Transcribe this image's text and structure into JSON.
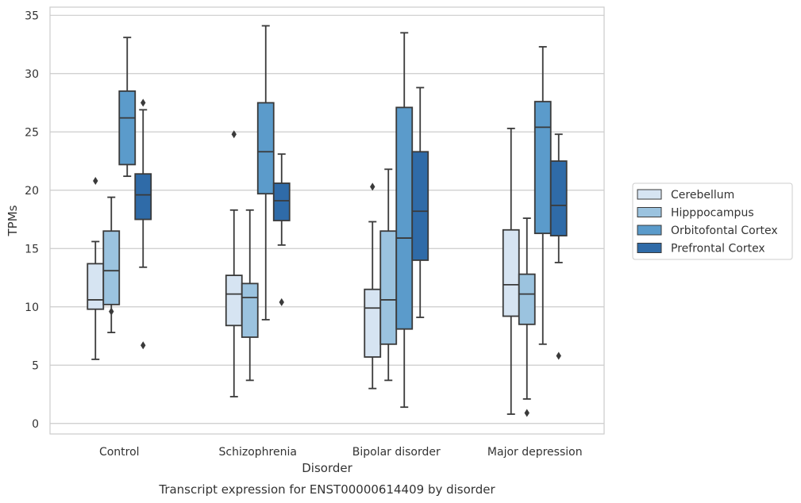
{
  "chart_data": {
    "type": "box",
    "title": "",
    "caption": "Transcript expression for ENST00000614409 by disorder",
    "xlabel": "Disorder",
    "ylabel": "TPMs",
    "ylim": [
      -0.9,
      35.7
    ],
    "yticks": [
      0,
      5,
      10,
      15,
      20,
      25,
      30,
      35
    ],
    "grid": "horizontal",
    "legend_position": "right",
    "categories": [
      "Control",
      "Schizophrenia",
      "Bipolar disorder",
      "Major depression"
    ],
    "series": [
      {
        "name": "Cerebellum",
        "color": "#d6e4f2",
        "boxes": [
          {
            "whisker_low": 5.5,
            "q1": 9.8,
            "median": 10.6,
            "q3": 13.7,
            "whisker_high": 15.6,
            "outliers": [
              20.8
            ]
          },
          {
            "whisker_low": 2.3,
            "q1": 8.4,
            "median": 11.1,
            "q3": 12.7,
            "whisker_high": 18.3,
            "outliers": [
              24.8
            ]
          },
          {
            "whisker_low": 3.0,
            "q1": 5.7,
            "median": 9.9,
            "q3": 11.5,
            "whisker_high": 17.3,
            "outliers": [
              20.3
            ]
          },
          {
            "whisker_low": 0.8,
            "q1": 9.2,
            "median": 11.9,
            "q3": 16.6,
            "whisker_high": 25.3,
            "outliers": []
          }
        ]
      },
      {
        "name": "Hipppocampus",
        "color": "#9bc3df",
        "boxes": [
          {
            "whisker_low": 7.8,
            "q1": 10.2,
            "median": 13.1,
            "q3": 16.5,
            "whisker_high": 19.4,
            "outliers": [
              9.6
            ]
          },
          {
            "whisker_low": 3.7,
            "q1": 7.4,
            "median": 10.8,
            "q3": 12.0,
            "whisker_high": 18.3,
            "outliers": []
          },
          {
            "whisker_low": 3.7,
            "q1": 6.8,
            "median": 10.6,
            "q3": 16.5,
            "whisker_high": 21.8,
            "outliers": []
          },
          {
            "whisker_low": 2.1,
            "q1": 8.5,
            "median": 11.1,
            "q3": 12.8,
            "whisker_high": 17.6,
            "outliers": [
              0.9
            ]
          }
        ]
      },
      {
        "name": "Orbitofontal Cortex",
        "color": "#5b9bcb",
        "boxes": [
          {
            "whisker_low": 21.2,
            "q1": 22.2,
            "median": 26.2,
            "q3": 28.5,
            "whisker_high": 33.1,
            "outliers": []
          },
          {
            "whisker_low": 8.9,
            "q1": 19.7,
            "median": 23.3,
            "q3": 27.5,
            "whisker_high": 34.1,
            "outliers": []
          },
          {
            "whisker_low": 1.4,
            "q1": 8.1,
            "median": 15.9,
            "q3": 27.1,
            "whisker_high": 33.5,
            "outliers": []
          },
          {
            "whisker_low": 6.8,
            "q1": 16.3,
            "median": 25.4,
            "q3": 27.6,
            "whisker_high": 32.3,
            "outliers": []
          }
        ]
      },
      {
        "name": "Prefrontal Cortex",
        "color": "#2f6ba8",
        "boxes": [
          {
            "whisker_low": 13.4,
            "q1": 17.5,
            "median": 19.6,
            "q3": 21.4,
            "whisker_high": 26.9,
            "outliers": [
              27.5,
              6.7
            ]
          },
          {
            "whisker_low": 15.3,
            "q1": 17.4,
            "median": 19.1,
            "q3": 20.6,
            "whisker_high": 23.1,
            "outliers": [
              10.4
            ]
          },
          {
            "whisker_low": 9.1,
            "q1": 14.0,
            "median": 18.2,
            "q3": 23.3,
            "whisker_high": 28.8,
            "outliers": []
          },
          {
            "whisker_low": 13.8,
            "q1": 16.1,
            "median": 18.7,
            "q3": 22.5,
            "whisker_high": 24.8,
            "outliers": [
              5.8
            ]
          }
        ]
      }
    ]
  }
}
